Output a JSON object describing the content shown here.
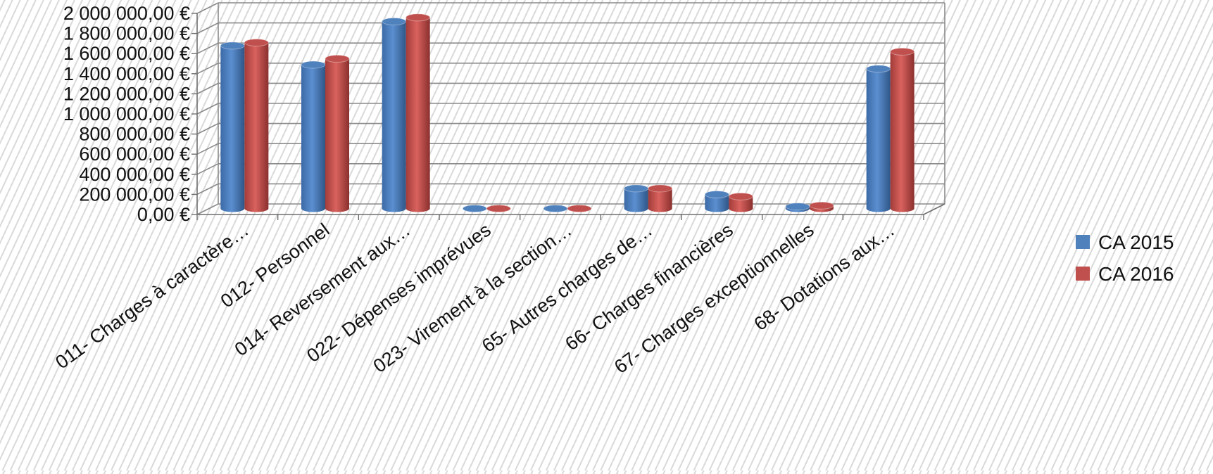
{
  "chart_data": {
    "type": "bar",
    "style": "3d-clustered-column",
    "categories": [
      "011- Charges à caractère…",
      "012- Personnel",
      "014- Reversement aux…",
      "022- Dépenses imprévues",
      "023- Virement à la section…",
      "65- Autres charges de…",
      "66- Charges financières",
      "67- Charges exceptionnelles",
      "68- Dotations aux…"
    ],
    "series": [
      {
        "name": "CA 2015",
        "color": "#4f81bd",
        "values": [
          1620000,
          1430000,
          1860000,
          0,
          0,
          200000,
          140000,
          20000,
          1390000
        ]
      },
      {
        "name": "CA 2016",
        "color": "#c0504d",
        "values": [
          1650000,
          1490000,
          1900000,
          0,
          0,
          200000,
          120000,
          30000,
          1560000
        ]
      }
    ],
    "ylim": [
      0,
      2000000
    ],
    "ytick_labels": [
      "0,00 €",
      "200 000,00 €",
      "400 000,00 €",
      "600 000,00 €",
      "800 000,00 €",
      "1 000 000,00 €",
      "1 200 000,00 €",
      "1 400 000,00 €",
      "1 600 000,00 €",
      "1 800 000,00 €",
      "2 000 000,00 €"
    ],
    "grid": true,
    "legend": "right"
  }
}
